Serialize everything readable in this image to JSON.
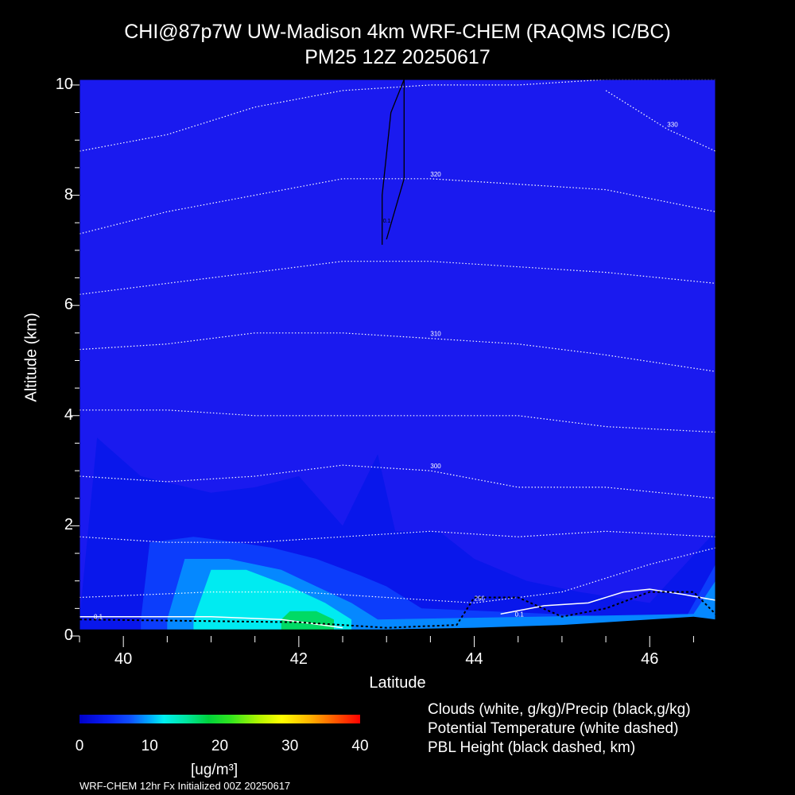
{
  "title_line1": "CHI@87p7W UW-Madison 4km WRF-CHEM (RAQMS IC/BC)",
  "title_line2": "PM25 12Z 20250617",
  "colors": {
    "background": "#000000",
    "field_base": "#1a1aef",
    "text": "#ffffff"
  },
  "chart_data": {
    "type": "heatmap",
    "title": "CHI@87p7W UW-Madison 4km WRF-CHEM (RAQMS IC/BC) PM25 12Z 20250617",
    "xlabel": "Latitude",
    "ylabel": "Altitude (km)",
    "xlim": [
      39.5,
      46.75
    ],
    "ylim": [
      0,
      10.1
    ],
    "xticks": [
      "40",
      "42",
      "44",
      "46"
    ],
    "yticks": [
      "0",
      "2",
      "4",
      "6",
      "8",
      "10"
    ],
    "colorbar": {
      "ticks": [
        "0",
        "10",
        "20",
        "30",
        "40"
      ],
      "unit": "[ug/m³]",
      "range": [
        0,
        40
      ]
    },
    "pm25_layers": [
      {
        "level": 3,
        "top_profile": [
          [
            39.5,
            0.3
          ],
          [
            39.7,
            3.6
          ],
          [
            40.2,
            2.9
          ],
          [
            41.0,
            2.6
          ],
          [
            41.5,
            2.7
          ],
          [
            42.0,
            2.9
          ],
          [
            42.5,
            2.0
          ],
          [
            42.9,
            3.3
          ],
          [
            43.1,
            1.9
          ],
          [
            43.6,
            1.9
          ],
          [
            44.0,
            1.4
          ],
          [
            44.6,
            1.0
          ],
          [
            45.2,
            0.8
          ],
          [
            46.0,
            0.6
          ],
          [
            46.75,
            1.9
          ]
        ]
      },
      {
        "level": 6,
        "top_profile": [
          [
            40.2,
            0.3
          ],
          [
            40.3,
            1.7
          ],
          [
            40.8,
            1.8
          ],
          [
            41.3,
            1.7
          ],
          [
            41.7,
            1.6
          ],
          [
            42.2,
            1.4
          ],
          [
            42.7,
            1.1
          ],
          [
            43.0,
            0.9
          ],
          [
            43.4,
            0.5
          ],
          [
            46.4,
            0.3
          ],
          [
            46.75,
            1.3
          ]
        ]
      },
      {
        "level": 9,
        "top_profile": [
          [
            40.5,
            0.3
          ],
          [
            40.7,
            1.4
          ],
          [
            41.2,
            1.4
          ],
          [
            41.8,
            1.2
          ],
          [
            42.2,
            0.9
          ],
          [
            42.6,
            0.6
          ],
          [
            42.9,
            0.3
          ],
          [
            46.5,
            0.4
          ],
          [
            46.75,
            1.0
          ]
        ]
      },
      {
        "level": 12,
        "top_profile": [
          [
            40.8,
            0.3
          ],
          [
            41.0,
            1.2
          ],
          [
            41.4,
            1.2
          ],
          [
            41.9,
            0.9
          ],
          [
            42.3,
            0.6
          ],
          [
            42.6,
            0.3
          ]
        ]
      },
      {
        "level": 17,
        "top_profile": [
          [
            41.8,
            0.3
          ],
          [
            41.9,
            0.45
          ],
          [
            42.2,
            0.45
          ],
          [
            42.4,
            0.3
          ]
        ]
      }
    ],
    "potential_temperature": [
      {
        "label": "290",
        "profile": [
          [
            39.5,
            0.7
          ],
          [
            41.0,
            0.8
          ],
          [
            42.0,
            0.8
          ],
          [
            43.0,
            0.7
          ],
          [
            44.0,
            0.6
          ],
          [
            45.0,
            0.8
          ],
          [
            46.0,
            1.3
          ],
          [
            46.75,
            1.6
          ]
        ]
      },
      {
        "label": "",
        "profile": [
          [
            39.5,
            1.8
          ],
          [
            40.5,
            1.7
          ],
          [
            41.5,
            1.7
          ],
          [
            42.5,
            1.8
          ],
          [
            43.5,
            1.9
          ],
          [
            44.5,
            1.8
          ],
          [
            45.5,
            1.9
          ],
          [
            46.75,
            1.8
          ]
        ]
      },
      {
        "label": "300",
        "profile": [
          [
            39.5,
            2.9
          ],
          [
            40.5,
            2.8
          ],
          [
            41.5,
            2.9
          ],
          [
            42.5,
            3.1
          ],
          [
            43.5,
            3.0
          ],
          [
            44.5,
            2.7
          ],
          [
            45.5,
            2.7
          ],
          [
            46.75,
            2.5
          ]
        ]
      },
      {
        "label": "",
        "profile": [
          [
            39.5,
            4.1
          ],
          [
            40.5,
            4.1
          ],
          [
            41.5,
            4.0
          ],
          [
            42.5,
            4.0
          ],
          [
            43.5,
            4.0
          ],
          [
            44.5,
            4.0
          ],
          [
            45.5,
            3.8
          ],
          [
            46.75,
            3.7
          ]
        ]
      },
      {
        "label": "310",
        "profile": [
          [
            39.5,
            5.2
          ],
          [
            40.5,
            5.3
          ],
          [
            41.5,
            5.5
          ],
          [
            42.5,
            5.5
          ],
          [
            43.5,
            5.4
          ],
          [
            44.5,
            5.3
          ],
          [
            45.5,
            5.1
          ],
          [
            46.75,
            4.8
          ]
        ]
      },
      {
        "label": "",
        "profile": [
          [
            39.5,
            6.2
          ],
          [
            40.5,
            6.4
          ],
          [
            41.5,
            6.6
          ],
          [
            42.5,
            6.8
          ],
          [
            43.5,
            6.8
          ],
          [
            44.5,
            6.7
          ],
          [
            45.5,
            6.6
          ],
          [
            46.75,
            6.4
          ]
        ]
      },
      {
        "label": "320",
        "profile": [
          [
            39.5,
            7.3
          ],
          [
            40.5,
            7.7
          ],
          [
            41.5,
            8.0
          ],
          [
            42.5,
            8.3
          ],
          [
            43.5,
            8.3
          ],
          [
            44.5,
            8.2
          ],
          [
            45.5,
            8.1
          ],
          [
            46.75,
            7.7
          ]
        ]
      },
      {
        "label": "",
        "profile": [
          [
            39.5,
            8.8
          ],
          [
            40.5,
            9.1
          ],
          [
            41.5,
            9.6
          ],
          [
            42.5,
            9.9
          ],
          [
            43.5,
            10.0
          ],
          [
            44.5,
            10.0
          ],
          [
            45.5,
            10.1
          ],
          [
            46.75,
            10.1
          ]
        ]
      },
      {
        "label": "330",
        "profile": [
          [
            45.5,
            9.9
          ],
          [
            46.2,
            9.2
          ],
          [
            46.75,
            8.8
          ]
        ]
      }
    ],
    "clouds_white": [
      {
        "label": "0.1",
        "profile": [
          [
            39.5,
            0.35
          ],
          [
            40.0,
            0.35
          ],
          [
            41.0,
            0.35
          ],
          [
            41.8,
            0.3
          ],
          [
            42.5,
            0.15
          ]
        ]
      },
      {
        "label": "0.1",
        "profile": [
          [
            44.3,
            0.4
          ],
          [
            44.8,
            0.55
          ],
          [
            45.3,
            0.6
          ],
          [
            45.7,
            0.8
          ],
          [
            46.0,
            0.85
          ],
          [
            46.4,
            0.75
          ],
          [
            46.75,
            0.65
          ]
        ]
      }
    ],
    "precip_black": [
      {
        "label": "0.1",
        "profile": [
          [
            42.95,
            7.1
          ],
          [
            42.95,
            8.0
          ],
          [
            43.05,
            9.5
          ],
          [
            43.2,
            10.1
          ],
          [
            43.2,
            8.3
          ],
          [
            43.0,
            7.2
          ]
        ]
      }
    ],
    "pbl_height": [
      [
        39.5,
        0.3
      ],
      [
        42.0,
        0.25
      ],
      [
        43.0,
        0.15
      ],
      [
        43.8,
        0.2
      ],
      [
        44.0,
        0.7
      ],
      [
        44.5,
        0.7
      ],
      [
        45.0,
        0.35
      ],
      [
        45.5,
        0.5
      ],
      [
        46.0,
        0.8
      ],
      [
        46.5,
        0.8
      ],
      [
        46.75,
        0.4
      ]
    ],
    "terrain": [
      [
        39.5,
        0.12
      ],
      [
        41.0,
        0.12
      ],
      [
        42.0,
        0.12
      ],
      [
        43.0,
        0.12
      ],
      [
        44.0,
        0.15
      ],
      [
        45.0,
        0.2
      ],
      [
        45.5,
        0.25
      ],
      [
        46.0,
        0.3
      ],
      [
        46.5,
        0.35
      ],
      [
        46.75,
        0.3
      ]
    ]
  },
  "xlabel_text": "Latitude",
  "ylabel_text": "Altitude (km)",
  "legend": {
    "line1": "Clouds (white, g/kg)/Precip (black,g/kg)",
    "line2": "Potential Temperature (white dashed)",
    "line3": "PBL Height (black dashed, km)"
  },
  "footer": "WRF-CHEM 12hr  Fx Initialized 00Z 20250617"
}
